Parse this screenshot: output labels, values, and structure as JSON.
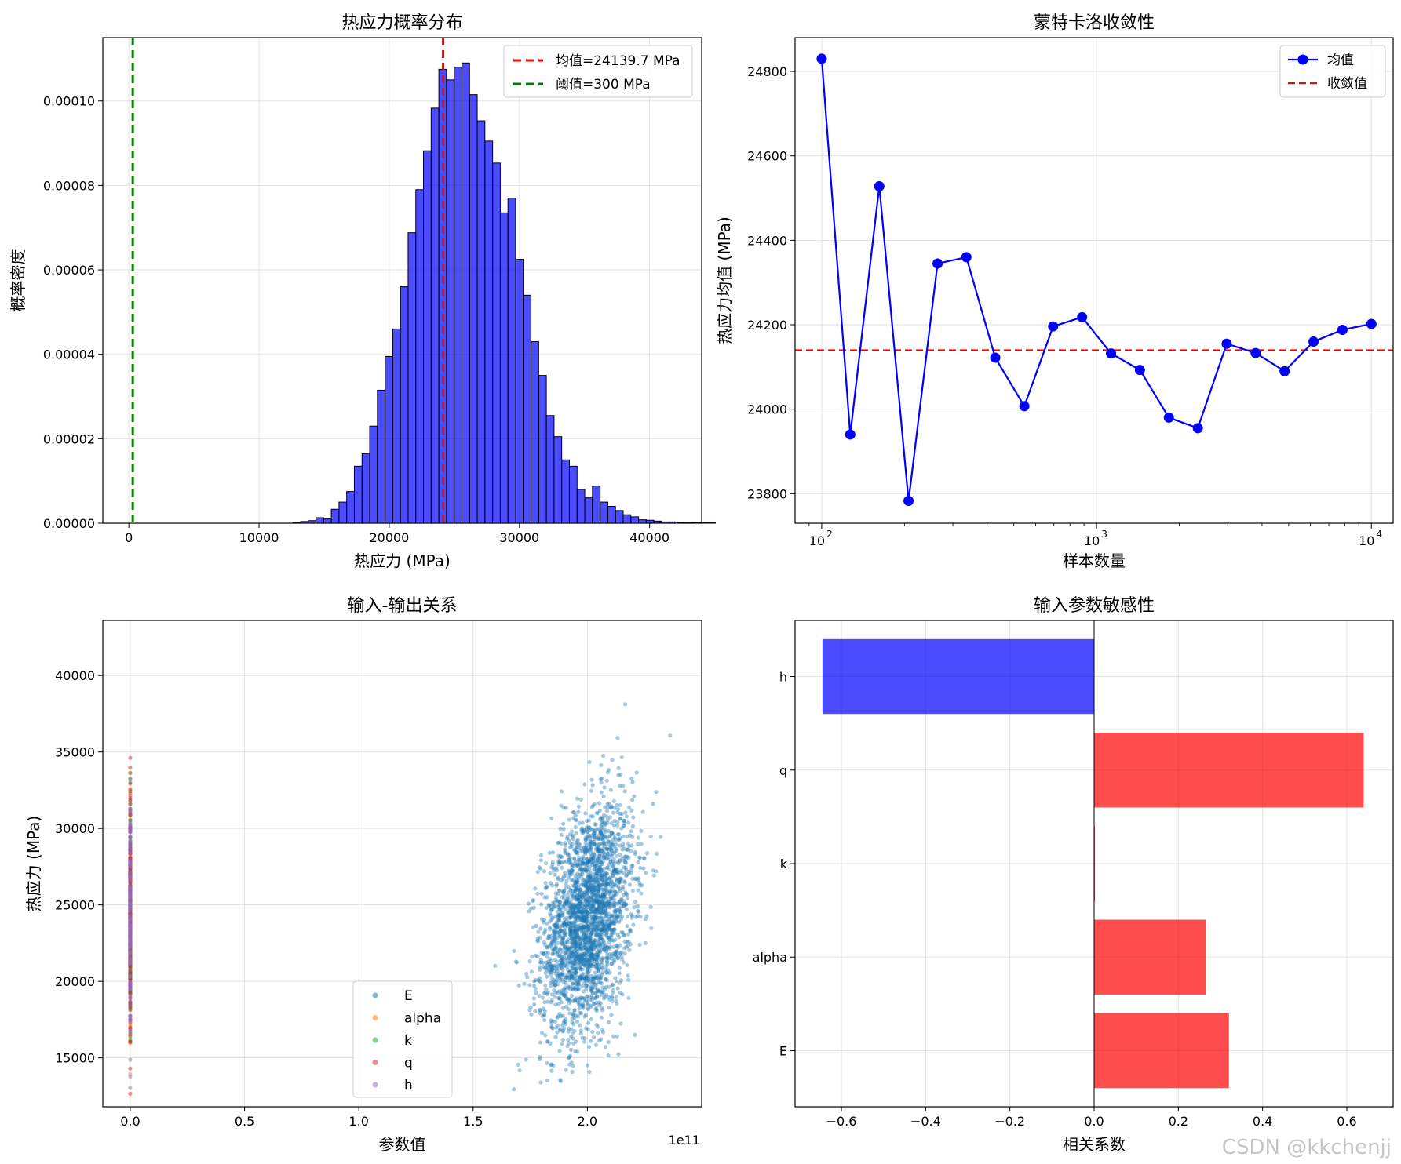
{
  "figure": {
    "watermark": "CSDN @kkchenjj"
  },
  "chart_data": [
    {
      "type": "bar",
      "subtype": "histogram",
      "title": "热应力概率分布",
      "xlabel": "热应力 (MPa)",
      "ylabel": "概率密度",
      "xlim": [
        -2000,
        44000
      ],
      "ylim": [
        0,
        0.000115
      ],
      "xticks": [
        0,
        10000,
        20000,
        30000,
        40000
      ],
      "yticks": [
        0,
        2e-05,
        4e-05,
        6e-05,
        8e-05,
        0.0001
      ],
      "ytick_labels": [
        "0.00000",
        "0.00002",
        "0.00004",
        "0.00006",
        "0.00008",
        "0.00010"
      ],
      "grid": true,
      "bar_color": "#0000ff",
      "bin_start": 12600,
      "bin_width": 590,
      "values": [
        2e-07,
        4e-07,
        6e-07,
        1.3e-06,
        1e-06,
        3.3e-06,
        5e-06,
        7.5e-06,
        1.35e-05,
        1.65e-05,
        2.3e-05,
        3.15e-05,
        3.95e-05,
        4.6e-05,
        5.6e-05,
        6.88e-05,
        7.9e-05,
        8.82e-05,
        9.83e-05,
        0.0001075,
        0.000105,
        0.000108,
        0.000109,
        0.0001015,
        9.53e-05,
        9.05e-05,
        8.53e-05,
        7.35e-05,
        7.7e-05,
        6.25e-05,
        5.4e-05,
        4.3e-05,
        3.5e-05,
        2.55e-05,
        2.05e-05,
        1.5e-05,
        1.35e-05,
        8e-06,
        6e-06,
        8.8e-06,
        5e-06,
        4e-06,
        3e-06,
        2e-06,
        1.5e-06,
        8e-07,
        7e-07,
        5e-07,
        3e-07,
        3e-07,
        1e-07,
        2e-07,
        1e-07,
        2e-07,
        2e-07
      ],
      "vlines": [
        {
          "x": 24139.7,
          "color": "#ff0000",
          "label": "均值=24139.7 MPa"
        },
        {
          "x": 300,
          "color": "#008000",
          "label": "阈值=300 MPa"
        }
      ],
      "legend_position": "top-right"
    },
    {
      "type": "line",
      "title": "蒙特卡洛收敛性",
      "xlabel": "样本数量",
      "ylabel": "热应力均值 (MPa)",
      "xscale": "log",
      "xlim": [
        80,
        12000
      ],
      "ylim": [
        23730,
        24880
      ],
      "xticks": [
        100,
        1000,
        10000
      ],
      "xtick_bases": [
        "10",
        "10",
        "10"
      ],
      "xtick_exps": [
        "2",
        "3",
        "4"
      ],
      "yticks": [
        23800,
        24000,
        24200,
        24400,
        24600,
        24800
      ],
      "grid": true,
      "series": [
        {
          "name": "均值",
          "color": "#0000ff",
          "x": [
            100,
            127,
            162,
            207,
            264,
            336,
            428,
            546,
            695,
            886,
            1129,
            1438,
            1833,
            2336,
            2976,
            3793,
            4833,
            6158,
            7848,
            10000
          ],
          "y": [
            24830,
            23940,
            24528,
            23783,
            24345,
            24360,
            24122,
            24007,
            24196,
            24218,
            24132,
            24093,
            23980,
            23955,
            24155,
            24133,
            24090,
            24160,
            24188,
            24202
          ]
        }
      ],
      "hlines": [
        {
          "y": 24139.7,
          "color": "#ff0000",
          "label": "收敛值"
        }
      ],
      "legend_position": "top-right"
    },
    {
      "type": "scatter",
      "title": "输入-输出关系",
      "xlabel": "参数值",
      "ylabel": "热应力 (MPa)",
      "xlim": [
        -12000000000.0,
        250000000000.0
      ],
      "ylim": [
        11800,
        43600
      ],
      "xticks": [
        0,
        50000000000.0,
        100000000000.0,
        150000000000.0,
        200000000000.0
      ],
      "xtick_labels": [
        "0.0",
        "0.5",
        "1.0",
        "1.5",
        "2.0"
      ],
      "offset_label": "1e11",
      "yticks": [
        15000,
        20000,
        25000,
        30000,
        35000,
        40000
      ],
      "grid": true,
      "series": [
        {
          "name": "E",
          "color": "#1f77b4",
          "x_mean": 200000000000.0,
          "x_std": 10000000000.0,
          "y_mean": 24139.7,
          "y_std": 3700,
          "correlation": 0.32
        },
        {
          "name": "alpha",
          "color": "#ff7f0e",
          "x_mean": 0,
          "y_mean": 24139.7,
          "y_std": 3700
        },
        {
          "name": "k",
          "color": "#2ca02c",
          "x_mean": 0,
          "y_mean": 24139.7,
          "y_std": 3700
        },
        {
          "name": "q",
          "color": "#d62728",
          "x_mean": 0,
          "y_mean": 24139.7,
          "y_std": 3700
        },
        {
          "name": "h",
          "color": "#9467bd",
          "x_mean": 0,
          "y_mean": 24139.7,
          "y_std": 3700
        }
      ],
      "legend_position": "lower-center"
    },
    {
      "type": "bar",
      "orientation": "horizontal",
      "title": "输入参数敏感性",
      "xlabel": "相关系数",
      "ylabel": "",
      "xlim": [
        -0.71,
        0.71
      ],
      "xticks": [
        -0.6,
        -0.4,
        -0.2,
        0.0,
        0.2,
        0.4,
        0.6
      ],
      "xtick_labels": [
        "−0.6",
        "−0.4",
        "−0.2",
        "0.0",
        "0.2",
        "0.4",
        "0.6"
      ],
      "grid": true,
      "categories": [
        "E",
        "alpha",
        "k",
        "q",
        "h"
      ],
      "values": [
        0.32,
        0.265,
        0.001,
        0.64,
        -0.645
      ],
      "positive_color": "#ff0000",
      "negative_color": "#0000ff"
    }
  ]
}
